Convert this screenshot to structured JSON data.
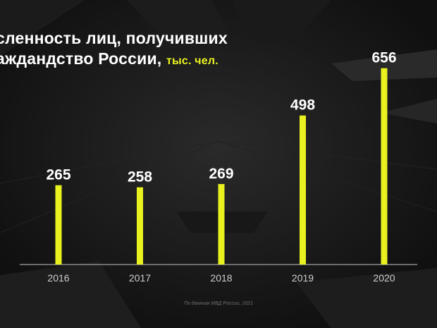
{
  "chart_data": {
    "type": "bar",
    "title_line1": "сленность лиц, получивших",
    "title_line2": "аждандство России,",
    "unit": "тыс. чел.",
    "categories": [
      "2016",
      "2017",
      "2018",
      "2019",
      "2020"
    ],
    "values": [
      265,
      258,
      269,
      498,
      656
    ],
    "ylim": [
      0,
      700
    ],
    "grid": false,
    "legend": "none"
  },
  "source": "По данным МВД России, 2021",
  "colors": {
    "bar": "#e9f21f",
    "background": "#131313",
    "axis": "#8a8a8a",
    "text": "#ffffff",
    "tick": "#cfcfcf"
  }
}
